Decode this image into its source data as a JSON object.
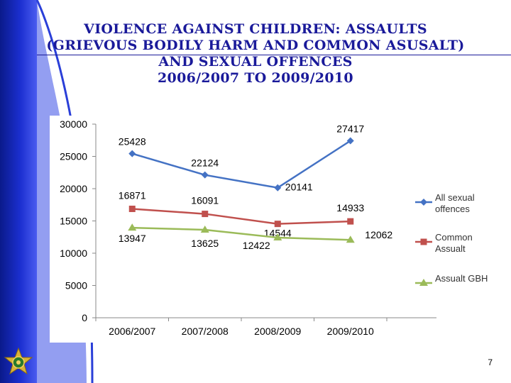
{
  "slide": {
    "title_lines": [
      "VIOLENCE AGAINST CHILDREN:  ASSAULTS",
      "(GRIEVOUS BODILY HARM AND COMMON ASUSALT)",
      "AND SEXUAL OFFENCES",
      "2006/2007 TO 2009/2010"
    ],
    "page_number": "7"
  },
  "chart_data": {
    "type": "line",
    "title": "",
    "categories": [
      "2006/2007",
      "2007/2008",
      "2008/2009",
      "2009/2010"
    ],
    "ylim": [
      0,
      30000
    ],
    "yticks": [
      0,
      5000,
      10000,
      15000,
      20000,
      25000,
      30000
    ],
    "grid": false,
    "legend_position": "right",
    "series": [
      {
        "name": "All sexual offences",
        "legend_lines": [
          "All sexual",
          "offences"
        ],
        "values": [
          25428,
          22124,
          20141,
          27417
        ],
        "color": "#4472C4",
        "marker": "diamond"
      },
      {
        "name": "Common Assualt",
        "legend_lines": [
          "Common",
          "Assualt"
        ],
        "values": [
          16871,
          16091,
          14544,
          14933
        ],
        "color": "#C0504D",
        "marker": "square"
      },
      {
        "name": "Assualt GBH",
        "legend_lines": [
          "Assualt GBH"
        ],
        "values": [
          13947,
          13625,
          12422,
          12062
        ],
        "color": "#9BBB59",
        "marker": "triangle"
      }
    ]
  }
}
